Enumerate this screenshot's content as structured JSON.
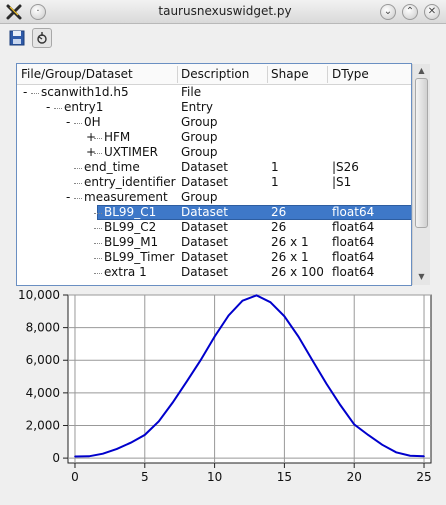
{
  "window": {
    "title": "taurusnexuswidget.py",
    "app_icon": "taurus-x-logo",
    "buttons": [
      "dot-icon",
      "chevron-down-icon",
      "chevron-up-icon",
      "close-icon"
    ]
  },
  "toolbar": {
    "items": [
      {
        "icon": "save-icon"
      },
      {
        "icon": "mode-icon",
        "toggled": true
      }
    ]
  },
  "tree": {
    "columns": [
      "File/Group/Dataset",
      "Description",
      "Shape",
      "DType"
    ],
    "rows": [
      {
        "level": 0,
        "expander": "-",
        "name": "scanwith1d.h5",
        "desc": "File",
        "shape": "",
        "dtype": ""
      },
      {
        "level": 1,
        "expander": "-",
        "name": "entry1",
        "desc": "Entry",
        "shape": "",
        "dtype": ""
      },
      {
        "level": 2,
        "expander": "-",
        "name": "0H",
        "desc": "Group",
        "shape": "",
        "dtype": ""
      },
      {
        "level": 3,
        "expander": "+",
        "name": "HFM",
        "desc": "Group",
        "shape": "",
        "dtype": ""
      },
      {
        "level": 3,
        "expander": "+",
        "name": "UXTIMER",
        "desc": "Group",
        "shape": "",
        "dtype": ""
      },
      {
        "level": 2,
        "expander": "",
        "name": "end_time",
        "desc": "Dataset",
        "shape": "1",
        "dtype": "|S26"
      },
      {
        "level": 2,
        "expander": "",
        "name": "entry_identifier",
        "desc": "Dataset",
        "shape": "1",
        "dtype": "|S1"
      },
      {
        "level": 2,
        "expander": "-",
        "name": "measurement",
        "desc": "Group",
        "shape": "",
        "dtype": ""
      },
      {
        "level": 3,
        "expander": "",
        "name": "BL99_C1",
        "desc": "Dataset",
        "shape": "26",
        "dtype": "float64",
        "selected": true
      },
      {
        "level": 3,
        "expander": "",
        "name": "BL99_C2",
        "desc": "Dataset",
        "shape": "26",
        "dtype": "float64"
      },
      {
        "level": 3,
        "expander": "",
        "name": "BL99_M1",
        "desc": "Dataset",
        "shape": "26 x 1",
        "dtype": "float64"
      },
      {
        "level": 3,
        "expander": "",
        "name": "BL99_Timer",
        "desc": "Dataset",
        "shape": "26 x 1",
        "dtype": "float64"
      },
      {
        "level": 3,
        "expander": "",
        "name": "extra 1",
        "desc": "Dataset",
        "shape": "26 x 100",
        "dtype": "float64"
      }
    ]
  },
  "scrollbar": {
    "up_icon": "triangle-up-icon",
    "down_icon": "triangle-down-icon"
  },
  "chart_data": {
    "type": "line",
    "title": "",
    "xlabel": "",
    "ylabel": "",
    "xlim": [
      -0.5,
      25.5
    ],
    "ylim": [
      -300,
      10000
    ],
    "xticks": [
      "0",
      "5",
      "10",
      "15",
      "20",
      "25"
    ],
    "yticks": [
      "0",
      "2,000",
      "4,000",
      "6,000",
      "8,000",
      "10,000"
    ],
    "grid": true,
    "series": [
      {
        "color": "#0000cc",
        "x": [
          0,
          1,
          2,
          3,
          4,
          5,
          6,
          7,
          8,
          9,
          10,
          11,
          12,
          13,
          14,
          15,
          16,
          17,
          18,
          19,
          20,
          21,
          22,
          23,
          24,
          25
        ],
        "y": [
          100,
          111,
          270,
          563,
          943,
          1424,
          2251,
          3408,
          4689,
          6003,
          7451,
          8741,
          9651,
          9975,
          9561,
          8693,
          7453,
          6008,
          4574,
          3256,
          2069,
          1418,
          820,
          355,
          145,
          110
        ]
      }
    ]
  }
}
